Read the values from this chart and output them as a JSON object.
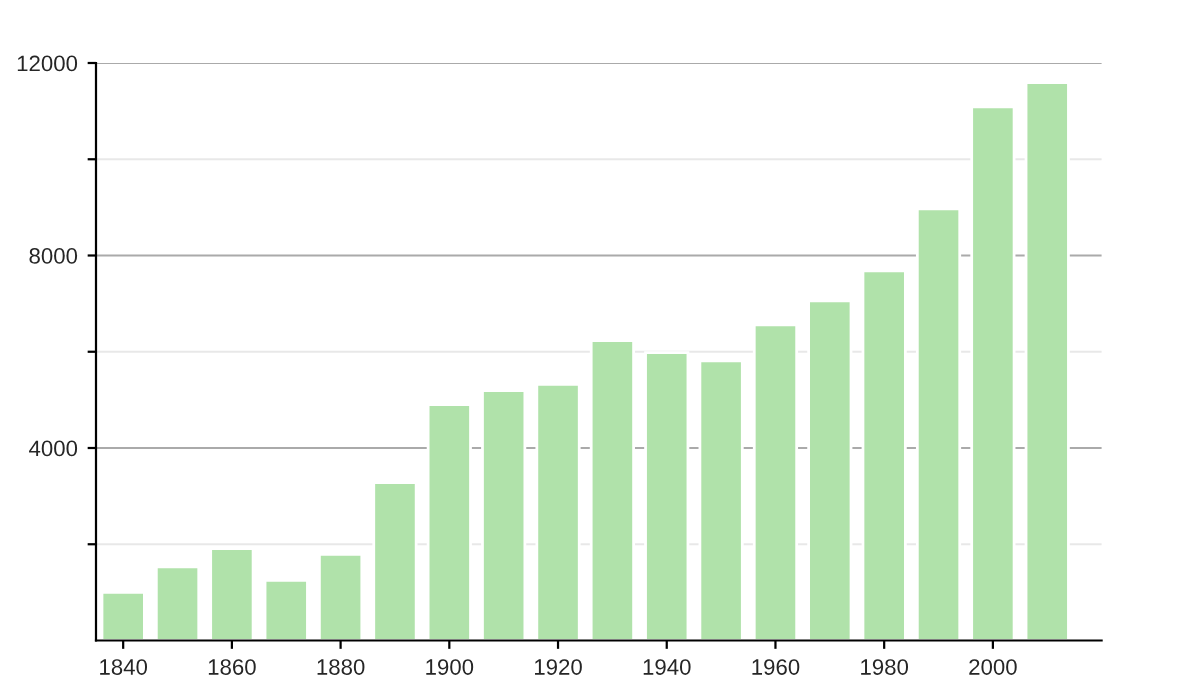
{
  "chart_data": {
    "type": "bar",
    "x": [
      1840,
      1850,
      1860,
      1870,
      1880,
      1890,
      1900,
      1910,
      1920,
      1930,
      1940,
      1950,
      1960,
      1970,
      1980,
      1990,
      2000,
      2010
    ],
    "values": [
      1000,
      1530,
      1910,
      1250,
      1790,
      3280,
      4900,
      5190,
      5320,
      6230,
      5980,
      5810,
      6560,
      7060,
      7680,
      8970,
      11090,
      11590
    ],
    "color": "#b0e2aa",
    "xlim": [
      1835,
      2020
    ],
    "xticks": [
      1840,
      1860,
      1880,
      1900,
      1920,
      1940,
      1960,
      1980,
      2000
    ],
    "ylim": [
      0,
      12000
    ],
    "yticks": [
      {
        "value": 2000,
        "label": null
      },
      4000,
      {
        "value": 6000,
        "label": null
      },
      8000,
      {
        "value": 10000,
        "label": null
      },
      12000
    ],
    "grid": "y"
  }
}
